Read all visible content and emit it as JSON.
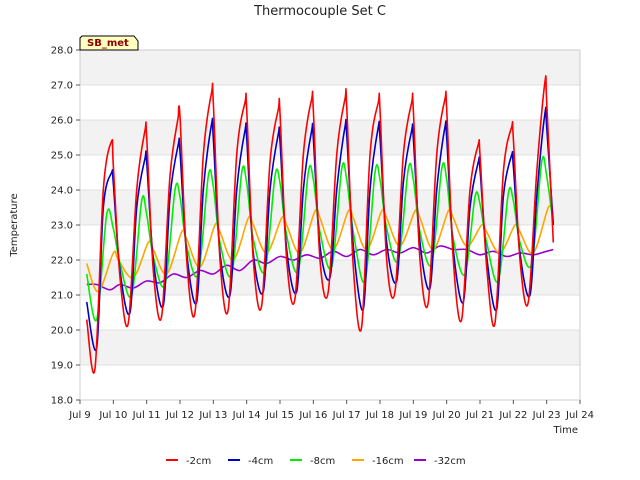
{
  "chart_data": {
    "type": "line",
    "title": "Thermocouple Set C",
    "xlabel": "Time",
    "ylabel": "Temperature",
    "badge": "SB_met",
    "xlim": [
      9,
      24
    ],
    "ylim": [
      18.0,
      28.0
    ],
    "x_ticks": [
      {
        "value": 9,
        "label": "Jul 9"
      },
      {
        "value": 10,
        "label": "Jul 10"
      },
      {
        "value": 11,
        "label": "Jul 11"
      },
      {
        "value": 12,
        "label": "Jul 12"
      },
      {
        "value": 13,
        "label": "Jul 13"
      },
      {
        "value": 14,
        "label": "Jul 14"
      },
      {
        "value": 15,
        "label": "Jul 15"
      },
      {
        "value": 16,
        "label": "Jul 16"
      },
      {
        "value": 17,
        "label": "Jul 17"
      },
      {
        "value": 18,
        "label": "Jul 18"
      },
      {
        "value": 19,
        "label": "Jul 19"
      },
      {
        "value": 20,
        "label": "Jul 20"
      },
      {
        "value": 21,
        "label": "Jul 21"
      },
      {
        "value": 22,
        "label": "Jul 22"
      },
      {
        "value": 23,
        "label": "Jul 23"
      },
      {
        "value": 24,
        "label": "Jul 24"
      }
    ],
    "y_ticks": [
      "18.0",
      "19.0",
      "20.0",
      "21.0",
      "22.0",
      "23.0",
      "24.0",
      "25.0",
      "26.0",
      "27.0",
      "28.0"
    ],
    "grid": "horizontal bands",
    "legend_position": "bottom",
    "series": [
      {
        "name": "-2cm",
        "color": "#ff0000",
        "x": [
          9.2,
          9.45,
          9.7,
          9.95,
          10.0,
          10.2,
          10.45,
          10.7,
          10.95,
          11.0,
          11.2,
          11.45,
          11.7,
          11.95,
          12.0,
          12.2,
          11.95,
          12.45,
          12.7,
          12.95,
          13.0,
          13.2,
          13.45,
          13.7,
          13.95,
          14.0,
          14.2,
          14.45,
          14.7,
          14.95,
          15.0,
          15.2,
          15.45,
          15.7,
          15.95,
          16.0,
          16.2,
          16.45,
          16.7,
          16.95,
          17.0,
          17.2,
          17.45,
          17.7,
          17.95,
          18.0,
          18.2,
          18.45,
          18.7,
          18.95,
          19.0,
          19.2,
          19.45,
          19.7,
          19.95,
          20.0,
          20.2,
          20.45,
          20.7,
          20.95,
          21.0,
          21.2,
          21.45,
          21.7,
          21.95,
          22.0,
          22.2,
          22.45,
          22.7,
          22.95,
          23.0,
          23.2
        ],
        "y": [
          20.3,
          18.9,
          24.0,
          25.4,
          24.7,
          21.5,
          20.2,
          24.0,
          25.7,
          25.5,
          21.7,
          20.4,
          24.4,
          26.1,
          26.1,
          22.0,
          26.1,
          20.5,
          25.0,
          26.8,
          26.5,
          22.0,
          20.6,
          25.0,
          26.5,
          26.3,
          22.0,
          20.7,
          24.8,
          26.3,
          26.2,
          22.0,
          20.9,
          25.0,
          26.6,
          26.3,
          22.0,
          21.1,
          25.0,
          26.6,
          26.4,
          21.8,
          20.1,
          25.0,
          26.5,
          26.3,
          22.0,
          21.1,
          25.0,
          26.5,
          26.3,
          22.0,
          20.8,
          25.0,
          26.6,
          26.3,
          22.0,
          20.3,
          24.0,
          25.3,
          25.0,
          21.8,
          20.2,
          24.5,
          25.8,
          25.5,
          22.0,
          20.8,
          24.5,
          27.1,
          26.5,
          22.5
        ]
      },
      {
        "name": "-4cm",
        "color": "#0000cc",
        "x": [
          9.2,
          9.5,
          9.7,
          9.95,
          10.0,
          10.2,
          10.5,
          10.7,
          10.95,
          11.0,
          11.2,
          11.5,
          11.7,
          11.95,
          12.0,
          12.2,
          12.5,
          12.7,
          12.95,
          13.0,
          13.2,
          13.5,
          13.7,
          13.95,
          14.0,
          14.2,
          14.5,
          14.7,
          14.95,
          15.0,
          15.2,
          15.5,
          15.7,
          15.95,
          16.0,
          16.2,
          16.5,
          16.7,
          16.95,
          17.0,
          17.2,
          17.5,
          17.7,
          17.95,
          18.0,
          18.2,
          18.5,
          18.7,
          18.95,
          19.0,
          19.2,
          19.5,
          19.7,
          19.95,
          20.0,
          20.2,
          20.5,
          20.7,
          20.95,
          21.0,
          21.2,
          21.5,
          21.7,
          21.95,
          22.0,
          22.2,
          22.5,
          22.7,
          22.95,
          23.0,
          23.2
        ],
        "y": [
          20.8,
          19.5,
          23.5,
          24.5,
          24.2,
          21.7,
          20.5,
          23.5,
          24.9,
          24.8,
          22.0,
          20.7,
          23.8,
          25.3,
          25.1,
          22.2,
          20.8,
          24.0,
          25.9,
          25.5,
          22.2,
          21.0,
          24.0,
          25.7,
          25.5,
          22.2,
          21.1,
          24.0,
          25.6,
          25.4,
          22.3,
          21.1,
          24.0,
          25.7,
          25.5,
          22.4,
          21.5,
          24.0,
          25.8,
          25.6,
          22.4,
          20.6,
          24.0,
          25.8,
          25.5,
          22.5,
          21.4,
          24.2,
          25.7,
          25.5,
          22.5,
          21.2,
          24.0,
          25.8,
          25.5,
          22.3,
          20.8,
          23.5,
          24.8,
          24.6,
          22.1,
          20.6,
          23.8,
          25.0,
          24.7,
          22.2,
          21.0,
          23.8,
          26.2,
          25.8,
          23.0
        ]
      },
      {
        "name": "-8cm",
        "color": "#00ee00",
        "x": [
          9.2,
          9.5,
          9.8,
          10.0,
          10.2,
          10.55,
          10.85,
          11.0,
          11.2,
          11.55,
          11.85,
          12.0,
          12.2,
          12.55,
          12.85,
          13.0,
          13.2,
          13.55,
          13.85,
          14.0,
          14.2,
          14.55,
          14.85,
          15.0,
          15.2,
          15.55,
          15.85,
          16.0,
          16.2,
          16.55,
          16.85,
          17.0,
          17.2,
          17.55,
          17.85,
          18.0,
          18.2,
          18.55,
          18.85,
          19.0,
          19.2,
          19.55,
          19.85,
          20.0,
          20.2,
          20.55,
          20.85,
          21.0,
          21.2,
          21.55,
          21.85,
          22.0,
          22.2,
          22.55,
          22.85,
          23.0,
          23.2
        ],
        "y": [
          21.6,
          20.3,
          23.3,
          22.9,
          21.9,
          21.0,
          23.7,
          23.3,
          22.1,
          21.3,
          24.0,
          23.8,
          22.4,
          21.6,
          24.4,
          24.1,
          22.5,
          21.6,
          24.5,
          24.2,
          22.6,
          21.7,
          24.4,
          24.2,
          22.7,
          21.7,
          24.5,
          24.3,
          22.8,
          21.8,
          24.6,
          24.3,
          22.8,
          21.4,
          24.5,
          24.3,
          22.9,
          22.0,
          24.6,
          24.3,
          22.8,
          21.9,
          24.6,
          24.3,
          22.6,
          21.6,
          23.8,
          23.6,
          22.5,
          21.4,
          23.9,
          23.7,
          22.5,
          21.9,
          24.8,
          24.4,
          23.0
        ]
      },
      {
        "name": "-16cm",
        "color": "#ffa500",
        "x": [
          9.2,
          9.55,
          10.0,
          10.15,
          10.6,
          11.05,
          11.2,
          11.6,
          12.05,
          12.2,
          12.6,
          13.05,
          13.2,
          13.6,
          14.05,
          14.2,
          14.6,
          15.05,
          15.2,
          15.6,
          16.05,
          16.2,
          16.6,
          17.05,
          17.2,
          17.6,
          18.05,
          18.2,
          18.6,
          19.05,
          19.2,
          19.6,
          20.05,
          20.2,
          20.6,
          21.05,
          21.2,
          21.6,
          22.05,
          22.2,
          22.6,
          23.05,
          23.2
        ],
        "y": [
          21.9,
          21.1,
          22.2,
          22.0,
          21.5,
          22.5,
          22.3,
          21.6,
          22.8,
          22.6,
          21.8,
          23.0,
          22.8,
          22.0,
          23.2,
          23.0,
          22.2,
          23.2,
          23.0,
          22.2,
          23.4,
          23.2,
          22.3,
          23.4,
          23.2,
          22.3,
          23.4,
          23.2,
          22.4,
          23.4,
          23.2,
          22.3,
          23.4,
          23.2,
          22.4,
          23.0,
          22.8,
          22.2,
          23.0,
          22.8,
          22.2,
          23.5,
          23.3
        ]
      },
      {
        "name": "-32cm",
        "color": "#9900cc",
        "x": [
          9.2,
          9.5,
          9.9,
          10.2,
          10.6,
          11.0,
          11.4,
          11.8,
          12.2,
          12.6,
          13.0,
          13.4,
          13.8,
          14.2,
          14.6,
          15.0,
          15.4,
          15.8,
          16.2,
          16.6,
          17.0,
          17.4,
          17.8,
          18.2,
          18.6,
          19.0,
          19.4,
          19.8,
          20.2,
          20.6,
          21.0,
          21.4,
          21.8,
          22.2,
          22.6,
          23.0,
          23.2
        ],
        "y": [
          21.3,
          21.3,
          21.15,
          21.3,
          21.2,
          21.4,
          21.35,
          21.6,
          21.5,
          21.7,
          21.6,
          21.85,
          21.7,
          22.0,
          21.9,
          22.1,
          22.0,
          22.15,
          22.05,
          22.25,
          22.1,
          22.3,
          22.15,
          22.3,
          22.2,
          22.35,
          22.2,
          22.4,
          22.3,
          22.3,
          22.15,
          22.25,
          22.1,
          22.2,
          22.15,
          22.25,
          22.3
        ]
      }
    ]
  }
}
